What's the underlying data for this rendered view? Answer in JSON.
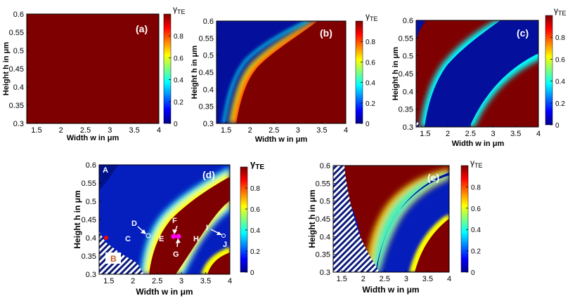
{
  "colors": {
    "red": "#7f0000",
    "blue": "#04109c",
    "deep_blue": "#00008f",
    "point_magenta": "#ff00ff",
    "hatch": "#0c1a7a"
  },
  "colorbar": {
    "label": "γ",
    "label_sub": "TE",
    "ticks": [
      "0",
      "0.2",
      "0.4",
      "0.6",
      "0.8"
    ],
    "colormap": "jet",
    "range": [
      0,
      1
    ]
  },
  "axes": {
    "xlabel": "Width w in μm",
    "ylabel": "Height h in μm",
    "xticks": [
      "1.5",
      "2",
      "2.5",
      "3",
      "3.5",
      "4"
    ],
    "yticks": [
      "0.3",
      "0.35",
      "0.4",
      "0.45",
      "0.5",
      "0.55",
      "0.6"
    ]
  },
  "chart_data": [
    {
      "type": "heatmap",
      "panel_label": "(a)",
      "xlim": [
        1.3,
        4.0
      ],
      "ylim": [
        0.3,
        0.6
      ],
      "description_regions": "uniform gamma_TE = 1 over entire domain"
    },
    {
      "type": "heatmap",
      "panel_label": "(b)",
      "xlim": [
        1.3,
        4.0
      ],
      "ylim": [
        0.3,
        0.6
      ],
      "boundary": {
        "h": [
          0.3,
          0.35,
          0.4,
          0.45,
          0.5,
          0.55,
          0.6
        ],
        "w": [
          1.55,
          1.62,
          1.78,
          1.98,
          2.25,
          2.65,
          3.35
        ]
      }
    },
    {
      "type": "heatmap",
      "panel_label": "(c)",
      "xlim": [
        1.3,
        4.0
      ],
      "ylim": [
        0.3,
        0.6
      ],
      "boundary_left": {
        "h": [
          0.3,
          0.35,
          0.4,
          0.45,
          0.5,
          0.55,
          0.6
        ],
        "w": [
          1.45,
          1.52,
          1.67,
          1.86,
          2.1,
          2.38,
          2.72
        ]
      },
      "boundary_right": {
        "h": [
          0.3,
          0.35,
          0.4,
          0.45,
          0.5,
          0.52
        ],
        "w": [
          2.5,
          2.65,
          2.9,
          3.25,
          3.75,
          4.0
        ]
      }
    },
    {
      "type": "heatmap",
      "panel_label": "(d)",
      "xlim": [
        1.3,
        4.0
      ],
      "ylim": [
        0.3,
        0.6
      ],
      "annotations": [
        {
          "label": "A",
          "w": 1.33,
          "h": 0.595
        },
        {
          "label": "B",
          "w": 1.55,
          "h": 0.37
        },
        {
          "label": "C",
          "w": 1.7,
          "h": 0.405
        },
        {
          "label": "D",
          "w": 2.2,
          "h": 0.42
        },
        {
          "label": "E",
          "w": 2.55,
          "h": 0.405
        },
        {
          "label": "F",
          "w": 2.88,
          "h": 0.42
        },
        {
          "label": "G",
          "w": 2.88,
          "h": 0.37
        },
        {
          "label": "H",
          "w": 3.35,
          "h": 0.405
        },
        {
          "label": "I",
          "w": 3.7,
          "h": 0.425
        },
        {
          "label": "J",
          "w": 3.95,
          "h": 0.393
        }
      ],
      "points": [
        {
          "w": 2.82,
          "h": 0.406
        },
        {
          "w": 2.9,
          "h": 0.406
        }
      ]
    },
    {
      "type": "heatmap",
      "panel_label": "(e)",
      "xlim": [
        1.3,
        4.0
      ],
      "ylim": [
        0.3,
        0.6
      ]
    }
  ]
}
